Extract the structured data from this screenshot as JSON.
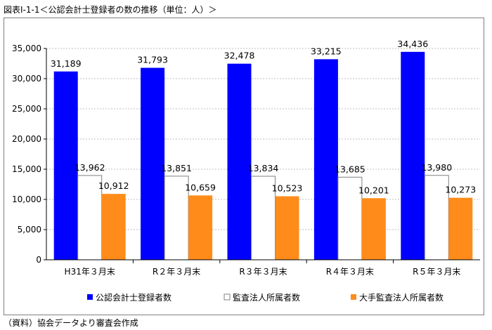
{
  "figure_title": "図表Ⅰ-1-1＜公認会計士登録者の数の推移（単位：人）＞",
  "source_note": "（資料）協会データより審査会作成",
  "chart_data": {
    "type": "bar",
    "categories": [
      "H31年３月末",
      "R２年３月末",
      "R３年３月末",
      "R４年３月末",
      "R５年３月末"
    ],
    "series": [
      {
        "name": "公認会計士登録者数",
        "values": [
          31189,
          31793,
          32478,
          33215,
          34436
        ],
        "labels": [
          "31,189",
          "31,793",
          "32,478",
          "33,215",
          "34,436"
        ],
        "color": "#0000ff"
      },
      {
        "name": "監査法人所属者数",
        "values": [
          13962,
          13851,
          13834,
          13685,
          13980
        ],
        "labels": [
          "13,962",
          "13,851",
          "13,834",
          "13,685",
          "13,980"
        ],
        "color": "#ffffff"
      },
      {
        "name": "大手監査法人所属者数",
        "values": [
          10912,
          10659,
          10523,
          10201,
          10273
        ],
        "labels": [
          "10,912",
          "10,659",
          "10,523",
          "10,201",
          "10,273"
        ],
        "color": "#ff8c1a"
      }
    ],
    "ylim": [
      0,
      35000
    ],
    "yticks": [
      0,
      5000,
      10000,
      15000,
      20000,
      25000,
      30000,
      35000
    ],
    "ytick_labels": [
      "0",
      "5,000",
      "10,000",
      "15,000",
      "20,000",
      "25,000",
      "30,000",
      "35,000"
    ],
    "grid": true,
    "legend_position": "bottom",
    "title": "",
    "xlabel": "",
    "ylabel": ""
  }
}
